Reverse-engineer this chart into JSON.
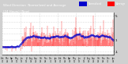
{
  "title_line1": "Wind Direction  Normalized and Average",
  "title_line2": "(24 Hours) (New)",
  "bg_color": "#d0d0d0",
  "plot_bg_color": "#ffffff",
  "title_bg_color": "#404040",
  "title_text_color": "#ffffff",
  "grid_color": "#bbbbbb",
  "bar_color": "#ff0000",
  "avg_color": "#0000cc",
  "legend_norm_color": "#0000cc",
  "legend_avg_color": "#ff0000",
  "legend_label1": "Normalized",
  "legend_label2": "Average",
  "ylim": [
    -1.5,
    5.5
  ],
  "yticks": [
    -1,
    1,
    5
  ],
  "ytick_labels": [
    "-1",
    "1",
    "5"
  ],
  "n_points": 288,
  "seed": 42
}
